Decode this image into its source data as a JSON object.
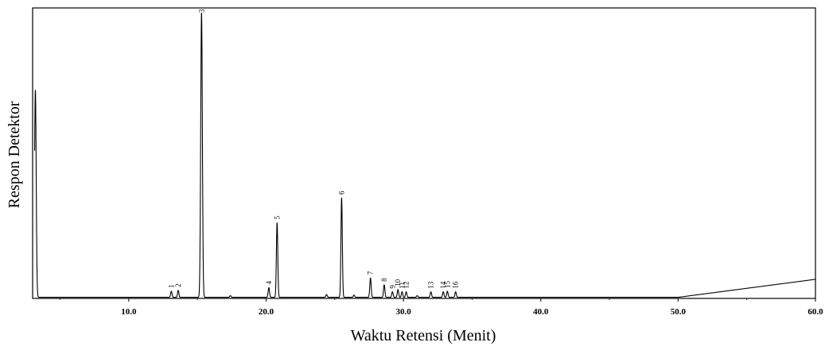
{
  "chart_data": {
    "type": "line",
    "xlabel": "Waktu Retensi (Menit)",
    "ylabel": "Respon Detektor",
    "xlim": [
      3,
      60
    ],
    "ylim": [
      0,
      1.05
    ],
    "x_ticks": [
      10,
      20,
      30,
      40,
      50,
      60
    ],
    "x_tick_labels": [
      "10.0",
      "20.0",
      "30.0",
      "40.0",
      "50.0",
      "60.0"
    ],
    "grid": false,
    "legend": "none",
    "line_color": "#000000",
    "series": [
      {
        "peaks": [
          {
            "label": "",
            "rt": 3.2,
            "height": 0.75
          },
          {
            "label": "1",
            "rt": 13.1,
            "height": 0.022
          },
          {
            "label": "2",
            "rt": 13.6,
            "height": 0.025
          },
          {
            "label": "3",
            "rt": 15.3,
            "height": 1.03
          },
          {
            "label": "4",
            "rt": 20.2,
            "height": 0.035
          },
          {
            "label": "5",
            "rt": 20.8,
            "height": 0.27
          },
          {
            "label": "6",
            "rt": 25.5,
            "height": 0.36
          },
          {
            "label": "7",
            "rt": 27.6,
            "height": 0.07
          },
          {
            "label": "8",
            "rt": 28.6,
            "height": 0.045
          },
          {
            "label": "9",
            "rt": 29.2,
            "height": 0.02
          },
          {
            "label": "10",
            "rt": 29.6,
            "height": 0.028
          },
          {
            "label": "11",
            "rt": 29.9,
            "height": 0.02
          },
          {
            "label": "12",
            "rt": 30.2,
            "height": 0.02
          },
          {
            "label": "13",
            "rt": 32.0,
            "height": 0.02
          },
          {
            "label": "14",
            "rt": 32.9,
            "height": 0.02
          },
          {
            "label": "15",
            "rt": 33.2,
            "height": 0.022
          },
          {
            "label": "16",
            "rt": 33.8,
            "height": 0.02
          }
        ],
        "baseline_drift": {
          "start_x": 50,
          "end_x": 60,
          "end_y": 0.065
        }
      }
    ]
  }
}
